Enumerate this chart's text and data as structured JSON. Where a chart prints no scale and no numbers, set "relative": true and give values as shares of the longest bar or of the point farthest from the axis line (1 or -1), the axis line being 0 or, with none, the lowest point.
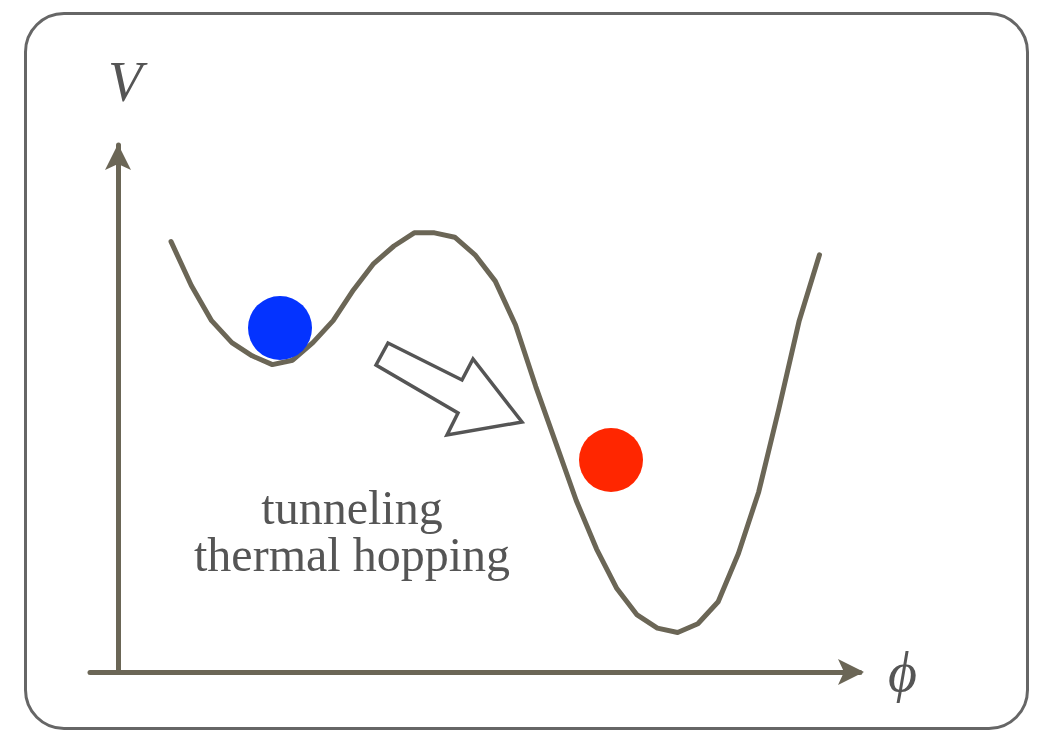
{
  "chart_data": {
    "type": "line",
    "relative": true,
    "xlabel": "ϕ",
    "ylabel": "V",
    "grid": false,
    "marker": "none",
    "line_style": "solid",
    "categories": [
      null,
      null,
      null,
      null,
      null,
      null,
      null,
      null,
      null,
      null,
      null,
      null,
      null,
      null,
      null,
      null,
      null,
      null,
      null,
      null,
      null,
      null,
      null,
      null,
      null,
      null,
      null,
      null,
      null,
      null,
      null,
      null,
      null,
      null,
      null,
      null,
      null,
      null,
      null
    ],
    "series": [
      {
        "color": "#6b6656",
        "values": [
          null,
          null,
          null,
          null,
          0.98,
          0.88,
          0.8,
          0.75,
          0.72,
          0.7,
          0.71,
          0.75,
          0.8,
          0.87,
          0.93,
          0.97,
          1.0,
          1.0,
          0.99,
          0.95,
          0.89,
          0.79,
          0.65,
          0.52,
          0.39,
          0.28,
          0.19,
          0.13,
          0.1,
          0.09,
          0.11,
          0.16,
          0.27,
          0.41,
          0.6,
          0.8,
          0.95,
          null,
          null
        ]
      }
    ],
    "annotations": [
      "tunneling",
      "thermal hopping"
    ]
  }
}
